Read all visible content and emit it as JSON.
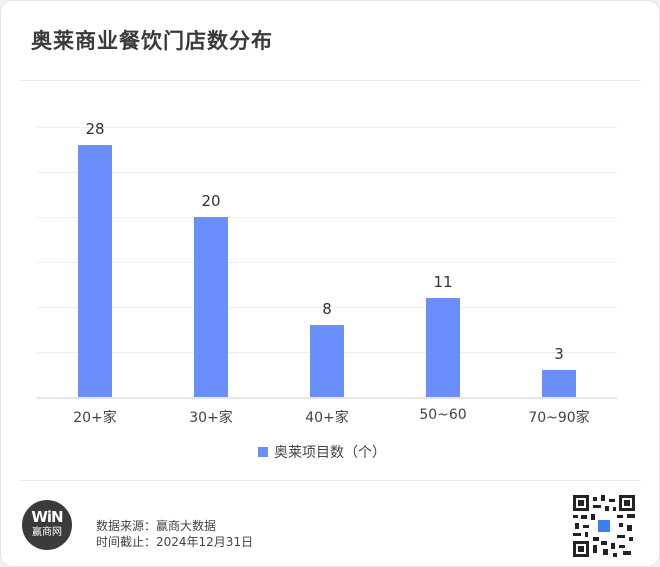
{
  "header": {
    "title": "奥莱商业餐饮门店数分布"
  },
  "chart_data": {
    "type": "bar",
    "title": "奥莱商业餐饮门店数分布",
    "categories": [
      "20+家",
      "30+家",
      "40+家",
      "50~60",
      "70~90家"
    ],
    "series": [
      {
        "name": "奥莱项目数（个）",
        "values": [
          28,
          20,
          8,
          11,
          3
        ],
        "color": "#6a8ffd"
      }
    ],
    "values": [
      28,
      20,
      8,
      11,
      3
    ],
    "xlabel": "",
    "ylabel": "",
    "ylim": [
      0,
      30
    ],
    "y_ticks": [
      0,
      5,
      10,
      15,
      20,
      25,
      30
    ],
    "y_tick_labels_visible": false,
    "grid": true,
    "data_labels": true,
    "legend_position": "bottom"
  },
  "legend": {
    "label": "奥莱项目数（个）",
    "color": "#6a8ffd"
  },
  "footer": {
    "logo_mark": "WiN",
    "logo_name": "赢商网",
    "source": "数据来源：赢商大数据",
    "date": "时间截止：2024年12月31日"
  },
  "icons": {
    "logo": "winshang-logo-icon",
    "qr": "qr-code-icon"
  }
}
